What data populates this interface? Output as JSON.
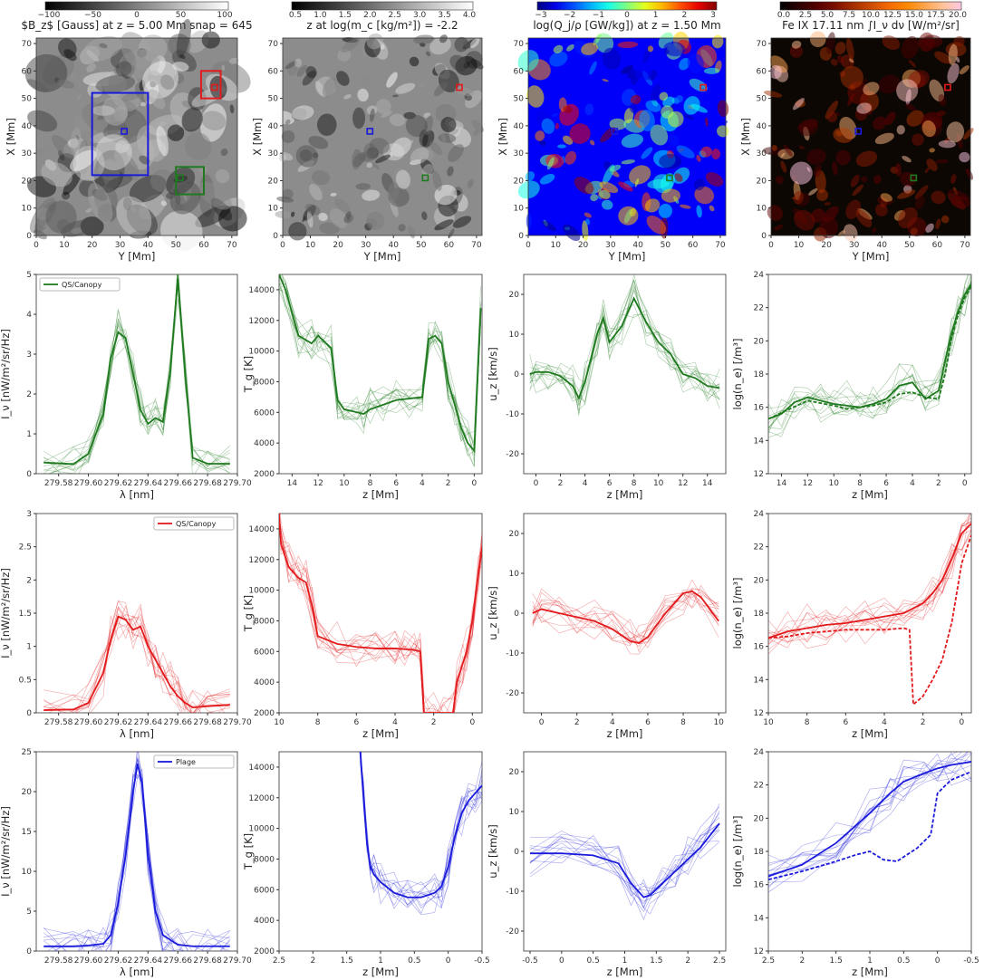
{
  "colors": {
    "green": "#1f7a1f",
    "red": "#e31a1c",
    "blue": "#1a1adb",
    "axis": "#333333"
  },
  "chart_data": [
    {
      "type": "heatmap",
      "title": "$B_z$ [Gauss] at z = 5.00 Mm snap = 645",
      "colorbar_ticks": [
        "−100",
        "−50",
        "0",
        "50",
        "100"
      ],
      "colormap": "gray",
      "xlabel": "Y [Mm]",
      "ylabel": "X [Mm]",
      "xlim": [
        0,
        72
      ],
      "ylim": [
        0,
        72
      ],
      "xticks": [
        0,
        10,
        20,
        30,
        40,
        50,
        60,
        70
      ],
      "yticks": [
        0,
        10,
        20,
        30,
        40,
        50,
        60,
        70
      ]
    },
    {
      "type": "heatmap",
      "title": "z at log(m_c [kg/m²]) = -2.2",
      "colorbar_ticks": [
        "0.5",
        "1.0",
        "1.5",
        "2.0",
        "2.5",
        "3.0",
        "3.5",
        "4.0"
      ],
      "colormap": "gray",
      "xlabel": "Y [Mm]",
      "ylabel": "X [Mm]",
      "xlim": [
        0,
        72
      ],
      "ylim": [
        0,
        72
      ],
      "xticks": [
        0,
        10,
        20,
        30,
        40,
        50,
        60,
        70
      ],
      "yticks": [
        0,
        10,
        20,
        30,
        40,
        50,
        60,
        70
      ]
    },
    {
      "type": "heatmap",
      "title": "log(Q_j/ρ [GW/kg]) at z = 1.50 Mm",
      "colorbar_ticks": [
        "−3",
        "−2",
        "−1",
        "0",
        "1",
        "2",
        "3"
      ],
      "colormap": "jet",
      "xlabel": "Y [Mm]",
      "ylabel": "X [Mm]",
      "xlim": [
        0,
        72
      ],
      "ylim": [
        0,
        72
      ],
      "xticks": [
        0,
        10,
        20,
        30,
        40,
        50,
        60,
        70
      ],
      "yticks": [
        0,
        10,
        20,
        30,
        40,
        50,
        60,
        70
      ]
    },
    {
      "type": "heatmap",
      "title": "Fe IX 17.11 nm ∫I_ν dν [W/m²/sr]",
      "colorbar_ticks": [
        "0.0",
        "2.5",
        "5.0",
        "7.5",
        "10.0",
        "12.5",
        "15.0",
        "17.5",
        "20.0"
      ],
      "colormap": "afmhot",
      "xlabel": "Y [Mm]",
      "ylabel": "X [Mm]",
      "xlim": [
        0,
        72
      ],
      "ylim": [
        0,
        72
      ],
      "xticks": [
        0,
        10,
        20,
        30,
        40,
        50,
        60,
        70
      ],
      "yticks": [
        0,
        10,
        20,
        30,
        40,
        50,
        60,
        70
      ]
    },
    {
      "type": "line",
      "legend": "QS/Canopy",
      "xlabel": "λ [nm]",
      "ylabel": "I_ν [nW/m²/sr/Hz]",
      "xlim": [
        279.565,
        279.7
      ],
      "ylim": [
        0,
        5
      ],
      "xticks": [
        279.58,
        279.6,
        279.62,
        279.64,
        279.66,
        279.68,
        279.7
      ],
      "yticks": [
        0,
        1,
        2,
        3,
        4,
        5
      ],
      "series": [
        {
          "x": [
            279.57,
            279.59,
            279.6,
            279.61,
            279.615,
            279.62,
            279.625,
            279.63,
            279.635,
            279.64,
            279.645,
            279.65,
            279.655,
            279.66,
            279.665,
            279.67,
            279.68,
            279.695
          ],
          "y": [
            0.28,
            0.24,
            0.5,
            1.5,
            2.9,
            3.55,
            3.4,
            2.5,
            1.6,
            1.25,
            1.4,
            1.3,
            2.6,
            4.9,
            2.5,
            0.4,
            0.25,
            0.25
          ]
        }
      ]
    },
    {
      "type": "line",
      "xlabel": "z [Mm]",
      "ylabel": "T_g [K]",
      "xlim": [
        15,
        -0.6
      ],
      "ylim": [
        2000,
        15000
      ],
      "xticks": [
        14,
        12,
        10,
        8,
        6,
        4,
        2,
        0
      ],
      "yticks": [
        2000,
        4000,
        6000,
        8000,
        10000,
        12000,
        14000
      ],
      "series": [
        {
          "x": [
            15,
            14.5,
            13.5,
            12.5,
            12,
            11,
            10.5,
            10,
            9,
            8.5,
            8,
            7,
            6,
            5,
            4,
            3.5,
            3,
            2.5,
            2,
            1.5,
            1,
            0.5,
            0,
            -0.5
          ],
          "y": [
            15000,
            14000,
            11000,
            10500,
            11000,
            10200,
            6800,
            6200,
            6000,
            5900,
            6200,
            6500,
            6800,
            6900,
            7000,
            10800,
            11000,
            10500,
            8000,
            6500,
            5000,
            4000,
            3500,
            12800
          ]
        }
      ]
    },
    {
      "type": "line",
      "xlabel": "z [Mm]",
      "ylabel": "u_z [km/s]",
      "xlim": [
        -1,
        15.5
      ],
      "ylim": [
        -25,
        25
      ],
      "xticks": [
        0,
        2,
        4,
        6,
        8,
        10,
        12,
        14
      ],
      "yticks": [
        -20,
        -10,
        0,
        10,
        20
      ],
      "series": [
        {
          "x": [
            -0.5,
            0,
            1,
            2,
            3,
            3.5,
            4,
            5,
            5.5,
            6,
            7,
            8,
            9,
            10,
            11,
            12,
            13,
            14,
            15
          ],
          "y": [
            0,
            0.5,
            0.5,
            -0.5,
            -3,
            -6,
            -2,
            10,
            14,
            8,
            12,
            19,
            13,
            8,
            5,
            0,
            -1,
            -3,
            -3.5
          ]
        }
      ]
    },
    {
      "type": "line",
      "xlabel": "z [Mm]",
      "ylabel": "log(n_e) [/m³]",
      "xlim": [
        15,
        -0.5
      ],
      "ylim": [
        12,
        24
      ],
      "xticks": [
        14,
        12,
        10,
        8,
        6,
        4,
        2,
        0
      ],
      "yticks": [
        12,
        14,
        16,
        18,
        20,
        22,
        24
      ],
      "series": [
        {
          "x": [
            15,
            14,
            13,
            12,
            11,
            10,
            9,
            8,
            7,
            6,
            5,
            4,
            3,
            2,
            1.5,
            1,
            0.5,
            0,
            -0.5
          ],
          "y": [
            15.3,
            15.6,
            16.3,
            16.6,
            16.4,
            16.2,
            16.1,
            16,
            16.2,
            16.5,
            17.3,
            17.5,
            16.5,
            17,
            18.8,
            20.5,
            21.8,
            22.8,
            23.4
          ]
        },
        {
          "x": [
            15,
            12,
            10,
            9,
            8,
            7,
            6,
            5,
            4,
            3,
            2,
            1.5,
            1,
            0.5,
            0,
            -0.5
          ],
          "y": [
            15.3,
            16.4,
            16.1,
            15.9,
            16.0,
            16.1,
            16.3,
            16.8,
            16.9,
            16.6,
            16.5,
            18.0,
            20.2,
            21.6,
            22.6,
            23.3
          ]
        }
      ]
    },
    {
      "type": "line",
      "legend": "QS/Canopy",
      "xlabel": "λ [nm]",
      "ylabel": "I_ν [nW/m²/sr/Hz]",
      "xlim": [
        279.565,
        279.7
      ],
      "ylim": [
        0,
        3
      ],
      "xticks": [
        279.58,
        279.6,
        279.62,
        279.64,
        279.66,
        279.68,
        279.7
      ],
      "yticks": [
        0,
        0.5,
        1.0,
        1.5,
        2.0,
        2.5,
        3.0
      ],
      "series": [
        {
          "x": [
            279.57,
            279.59,
            279.6,
            279.61,
            279.615,
            279.62,
            279.625,
            279.63,
            279.635,
            279.64,
            279.645,
            279.65,
            279.655,
            279.66,
            279.665,
            279.67,
            279.68,
            279.695
          ],
          "y": [
            0.04,
            0.05,
            0.15,
            0.6,
            1.1,
            1.45,
            1.4,
            1.25,
            1.3,
            1.0,
            0.8,
            0.6,
            0.4,
            0.25,
            0.15,
            0.08,
            0.1,
            0.12
          ]
        }
      ]
    },
    {
      "type": "line",
      "xlabel": "z [Mm]",
      "ylabel": "T_g [K]",
      "xlim": [
        10,
        -0.5
      ],
      "ylim": [
        2000,
        15000
      ],
      "xticks": [
        10,
        8,
        6,
        4,
        2,
        0
      ],
      "yticks": [
        2000,
        4000,
        6000,
        8000,
        10000,
        12000,
        14000
      ],
      "series": [
        {
          "x": [
            10,
            9.9,
            9.5,
            9,
            8.6,
            8.3,
            8,
            7,
            6,
            5,
            4,
            3.5,
            3,
            2.7,
            2.5,
            2,
            1.5,
            1,
            0.8,
            0.5,
            0.3,
            0,
            -0.3,
            -0.5
          ],
          "y": [
            15000,
            13000,
            11500,
            10800,
            10500,
            9000,
            7000,
            6500,
            6300,
            6200,
            6200,
            6150,
            6100,
            6000,
            2000,
            2000,
            2000,
            2000,
            4000,
            5200,
            6000,
            8000,
            11000,
            12800
          ]
        }
      ]
    },
    {
      "type": "line",
      "xlabel": "z [Mm]",
      "ylabel": "u_z [km/s]",
      "xlim": [
        -1,
        10.4
      ],
      "ylim": [
        -25,
        25
      ],
      "xticks": [
        0,
        2,
        4,
        6,
        8,
        10
      ],
      "yticks": [
        -20,
        -10,
        0,
        10,
        20
      ],
      "series": [
        {
          "x": [
            -0.5,
            0,
            1,
            2,
            3,
            4,
            5,
            5.5,
            6,
            7,
            8,
            8.5,
            9,
            10
          ],
          "y": [
            0,
            1,
            0,
            -1,
            -2,
            -4,
            -7,
            -7.5,
            -6,
            0,
            5,
            5.5,
            4,
            -2
          ]
        }
      ]
    },
    {
      "type": "line",
      "xlabel": "z [Mm]",
      "ylabel": "log(n_e) [/m³]",
      "xlim": [
        10,
        -0.5
      ],
      "ylim": [
        12,
        24
      ],
      "xticks": [
        10,
        8,
        6,
        4,
        2,
        0
      ],
      "yticks": [
        12,
        14,
        16,
        18,
        20,
        22,
        24
      ],
      "series": [
        {
          "x": [
            10,
            9,
            8,
            7,
            6,
            5,
            4,
            3,
            2,
            1.5,
            1,
            0.5,
            0,
            -0.5
          ],
          "y": [
            16.5,
            16.9,
            17.1,
            17.3,
            17.4,
            17.6,
            17.8,
            18.0,
            18.6,
            19.2,
            20.0,
            21.3,
            22.8,
            23.4
          ]
        },
        {
          "x": [
            10,
            9,
            8,
            7,
            6,
            5,
            4,
            3,
            2.7,
            2.5,
            2,
            1.5,
            1,
            0.5,
            0,
            -0.5
          ],
          "y": [
            16.5,
            16.6,
            16.8,
            16.9,
            17.0,
            17.0,
            17.0,
            17.1,
            17.0,
            12.5,
            13.0,
            14.0,
            15.2,
            17.5,
            21.0,
            22.7
          ]
        }
      ]
    },
    {
      "type": "line",
      "legend": "Plage",
      "xlabel": "λ [nm]",
      "ylabel": "I_ν [nW/m²/sr/Hz]",
      "xlim": [
        279.565,
        279.7
      ],
      "ylim": [
        0,
        25
      ],
      "xticks": [
        279.58,
        279.6,
        279.62,
        279.64,
        279.66,
        279.68,
        279.7
      ],
      "yticks": [
        0,
        5,
        10,
        15,
        20,
        25
      ],
      "series": [
        {
          "x": [
            279.57,
            279.59,
            279.6,
            279.61,
            279.615,
            279.62,
            279.625,
            279.63,
            279.633,
            279.636,
            279.64,
            279.645,
            279.65,
            279.66,
            279.67,
            279.68,
            279.695
          ],
          "y": [
            0.6,
            0.6,
            0.7,
            0.9,
            2.0,
            6.0,
            12.0,
            20.0,
            23.5,
            21.0,
            12.0,
            5.0,
            2.0,
            0.8,
            0.6,
            0.6,
            0.6
          ]
        }
      ]
    },
    {
      "type": "line",
      "xlabel": "z [Mm]",
      "ylabel": "T_g [K]",
      "xlim": [
        2.5,
        -0.5
      ],
      "ylim": [
        2000,
        15000
      ],
      "xticks": [
        2.5,
        2.0,
        1.5,
        1.0,
        0.5,
        0.0,
        -0.5
      ],
      "yticks": [
        2000,
        4000,
        6000,
        8000,
        10000,
        12000,
        14000
      ],
      "series": [
        {
          "x": [
            1.3,
            1.25,
            1.2,
            1.15,
            1.1,
            1.0,
            0.8,
            0.6,
            0.4,
            0.2,
            0.1,
            0,
            -0.1,
            -0.2,
            -0.3,
            -0.4,
            -0.5
          ],
          "y": [
            15000,
            12000,
            9000,
            7500,
            7000,
            6500,
            5800,
            5500,
            5500,
            5800,
            6200,
            7500,
            9500,
            11000,
            11800,
            12300,
            12800
          ]
        }
      ]
    },
    {
      "type": "line",
      "xlabel": "z [Mm]",
      "ylabel": "u_z [km/s]",
      "xlim": [
        -0.6,
        2.6
      ],
      "ylim": [
        -25,
        25
      ],
      "xticks": [
        -0.5,
        0.0,
        0.5,
        1.0,
        1.5,
        2.0,
        2.5
      ],
      "yticks": [
        -20,
        -10,
        0,
        10,
        20
      ],
      "series": [
        {
          "x": [
            -0.5,
            0,
            0.5,
            0.9,
            1.1,
            1.3,
            1.4,
            1.6,
            1.8,
            2.0,
            2.2,
            2.5
          ],
          "y": [
            -0.5,
            -0.5,
            -1,
            -3,
            -8,
            -11.5,
            -11,
            -8,
            -5,
            -2,
            1,
            7
          ]
        }
      ]
    },
    {
      "type": "line",
      "xlabel": "z [Mm]",
      "ylabel": "log(n_e) [/m³]",
      "xlim": [
        2.5,
        -0.5
      ],
      "ylim": [
        12,
        24
      ],
      "xticks": [
        2.5,
        2.0,
        1.5,
        1.0,
        0.5,
        0.0,
        -0.5
      ],
      "yticks": [
        12,
        14,
        16,
        18,
        20,
        22,
        24
      ],
      "series": [
        {
          "x": [
            2.5,
            2.0,
            1.5,
            1.0,
            0.7,
            0.5,
            0.2,
            0,
            -0.2,
            -0.5
          ],
          "y": [
            16.5,
            17.2,
            18.5,
            20.3,
            21.5,
            22.2,
            22.7,
            23.0,
            23.2,
            23.4
          ]
        },
        {
          "x": [
            2.5,
            2.0,
            1.5,
            1.2,
            1.0,
            0.8,
            0.6,
            0.3,
            0.1,
            0,
            -0.2,
            -0.5
          ],
          "y": [
            16.3,
            16.8,
            17.4,
            17.8,
            18.0,
            17.5,
            17.4,
            18.2,
            19.0,
            21.5,
            22.3,
            22.8
          ]
        }
      ]
    }
  ]
}
